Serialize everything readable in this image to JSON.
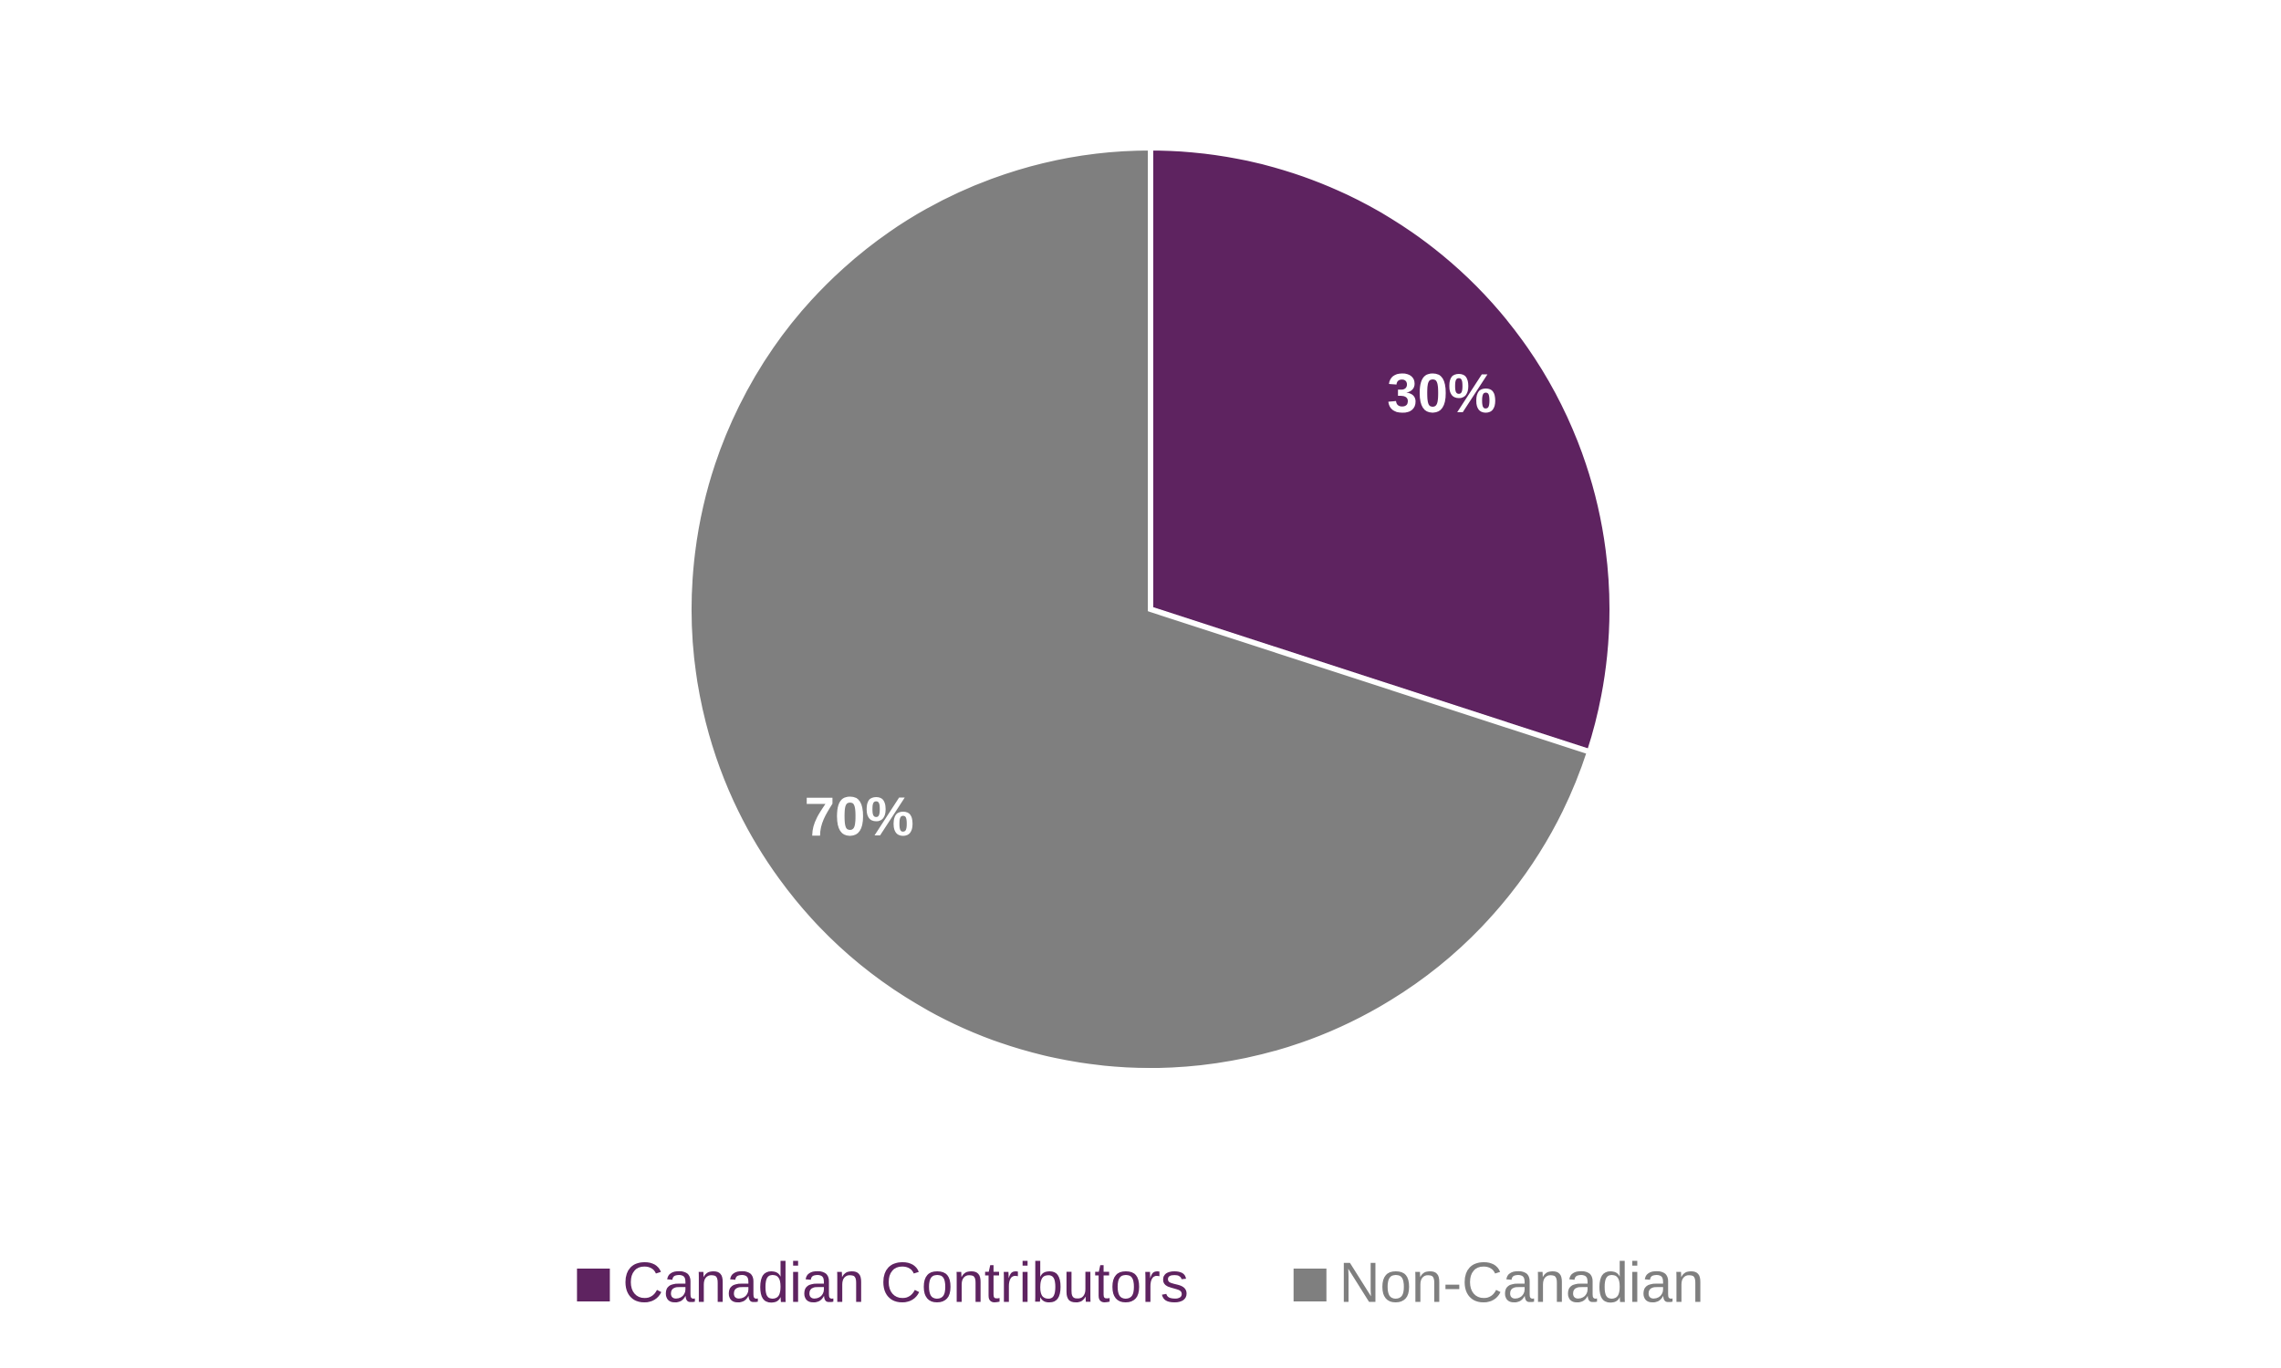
{
  "chart_data": {
    "type": "pie",
    "categories": [
      "Canadian Contributors",
      "Non-Canadian"
    ],
    "values": [
      30,
      70
    ],
    "value_labels": [
      "30%",
      "70%"
    ],
    "colors": [
      "#5e2360",
      "#7f7f7f"
    ],
    "legend": "bottom"
  }
}
